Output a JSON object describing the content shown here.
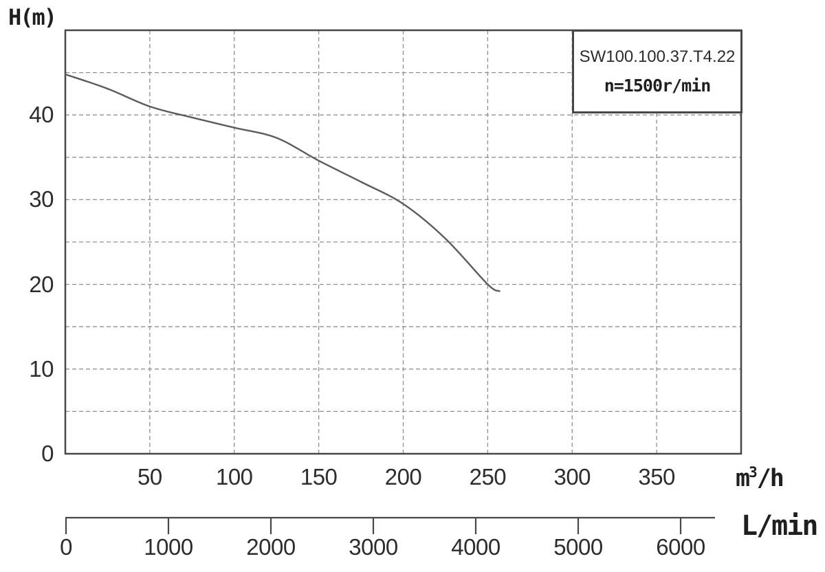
{
  "labels": {
    "y_axis_title": "H(m)",
    "flow_unit": {
      "base": "m",
      "sup": "3",
      "rest": "/h"
    },
    "lmin_unit": "L/min"
  },
  "legend": {
    "model": "SW100.100.37.T4.22",
    "speed": "n=1500r/min"
  },
  "colors": {
    "axis": "#474747",
    "grid": "#909090",
    "curve": "#5c5c5c",
    "text": "#2d2d2d"
  },
  "chart_data": {
    "type": "line",
    "title": "",
    "ylabel": "H(m)",
    "xlabel": "m³/h",
    "x2label": "L/min",
    "xlim": [
      0,
      400
    ],
    "ylim": [
      0,
      50
    ],
    "x_ticks": [
      50,
      100,
      150,
      200,
      250,
      300,
      350
    ],
    "y_ticks": [
      0,
      10,
      20,
      30,
      40
    ],
    "x2_ticks": [
      0,
      1000,
      2000,
      3000,
      4000,
      5000,
      6000
    ],
    "grid": true,
    "grid_step_x": 50,
    "grid_step_y": 5,
    "legend_position": "top-right",
    "legend_entries": [
      "SW100.100.37.T4.22",
      "n=1500r/min"
    ],
    "series": [
      {
        "name": "SW100.100.37.T4.22",
        "x": [
          0,
          25,
          50,
          75,
          100,
          125,
          150,
          175,
          200,
          225,
          250,
          257
        ],
        "y": [
          44.8,
          43.1,
          41.0,
          39.7,
          38.5,
          37.3,
          34.6,
          32.1,
          29.5,
          25.4,
          20.0,
          19.2
        ]
      }
    ]
  }
}
